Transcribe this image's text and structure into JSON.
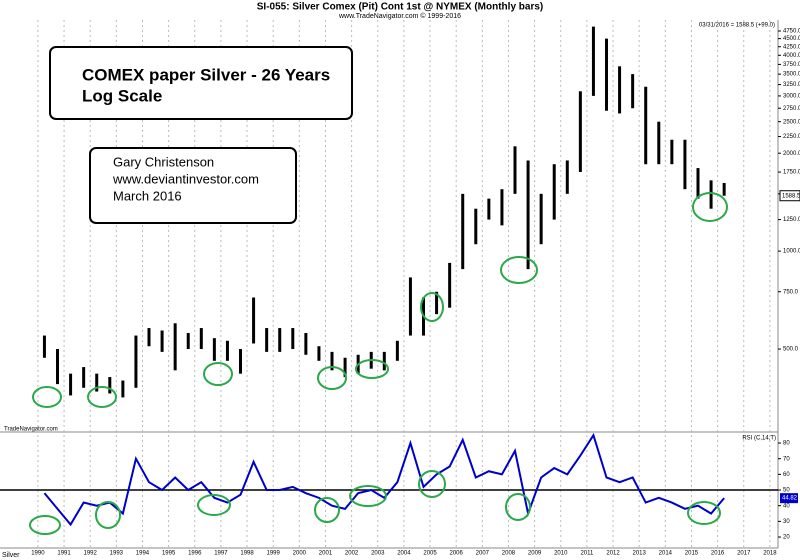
{
  "header": {
    "title": "SI-055:  Silver Comex (Pit) Cont 1st @ NYMEX  (Monthly bars)",
    "subtitle": "www.TradeNavigator.com © 1999-2016",
    "quote": "03/31/2016 = 1588.5 (+99.0)",
    "watermark": "TradeNavigator.com",
    "symbol": "Silver"
  },
  "boxes": {
    "main": [
      "COMEX paper Silver - 26 Years",
      "Log Scale"
    ],
    "author": [
      "Gary Christenson",
      "www.deviantinvestor.com",
      "March 2016"
    ]
  },
  "chart_data": [
    {
      "type": "hilo",
      "color": "#000000",
      "log": true,
      "last_label": "1588.5",
      "x": [
        1990,
        1990.5,
        1991,
        1991.5,
        1992,
        1992.5,
        1993,
        1993.5,
        1994,
        1994.5,
        1995,
        1995.5,
        1996,
        1996.5,
        1997,
        1997.5,
        1998,
        1998.5,
        1999,
        1999.5,
        2000,
        2000.5,
        2001,
        2001.5,
        2002,
        2002.5,
        2003,
        2003.5,
        2004,
        2004.5,
        2005,
        2005.5,
        2006,
        2006.5,
        2007,
        2007.5,
        2008,
        2008.5,
        2009,
        2009.5,
        2010,
        2010.5,
        2011,
        2011.5,
        2012,
        2012.5,
        2013,
        2013.5,
        2014,
        2014.5,
        2015,
        2015.5,
        2016
      ],
      "high": [
        550,
        500,
        420,
        440,
        420,
        410,
        400,
        550,
        580,
        570,
        600,
        560,
        580,
        540,
        530,
        500,
        720,
        580,
        580,
        580,
        560,
        510,
        490,
        470,
        480,
        490,
        490,
        530,
        830,
        720,
        750,
        920,
        1500,
        1350,
        1450,
        1550,
        2100,
        1900,
        1500,
        1850,
        1900,
        3100,
        4900,
        4500,
        3700,
        3500,
        3200,
        2500,
        2200,
        2200,
        1800,
        1650,
        1620
      ],
      "low": [
        470,
        390,
        360,
        380,
        370,
        365,
        355,
        380,
        510,
        490,
        430,
        500,
        500,
        460,
        460,
        420,
        520,
        490,
        490,
        500,
        480,
        460,
        430,
        410,
        420,
        435,
        430,
        460,
        550,
        550,
        640,
        670,
        880,
        1050,
        1250,
        1200,
        1500,
        880,
        1050,
        1250,
        1500,
        1750,
        3000,
        2700,
        2650,
        2750,
        1850,
        1850,
        1850,
        1550,
        1450,
        1350,
        1480
      ],
      "xlim": [
        1988.55,
        2018.31
      ],
      "xticks": [
        1990,
        1991,
        1992,
        1993,
        1994,
        1995,
        1996,
        1997,
        1998,
        1999,
        2000,
        2001,
        2002,
        2003,
        2004,
        2005,
        2006,
        2007,
        2008,
        2009,
        2010,
        2011,
        2012,
        2013,
        2014,
        2015,
        2016,
        2017,
        2018
      ],
      "ylim": [
        292,
        5135
      ],
      "yticks": [
        {
          "value": 500,
          "label": "500.0"
        },
        {
          "value": 750,
          "label": "750.0"
        },
        {
          "value": 1000,
          "label": "1000.0"
        },
        {
          "value": 1250,
          "label": "1250.0"
        },
        {
          "value": 1500,
          "label": "1500.0"
        },
        {
          "value": 1750,
          "label": "1750.0"
        },
        {
          "value": 2000,
          "label": "2000.0"
        },
        {
          "value": 2250,
          "label": "2250.0"
        },
        {
          "value": 2500,
          "label": "2500.0"
        },
        {
          "value": 2750,
          "label": "2750.0"
        },
        {
          "value": 3000,
          "label": "3000.0"
        },
        {
          "value": 3250,
          "label": "3250.0"
        },
        {
          "value": 3500,
          "label": "3500.0"
        },
        {
          "value": 3750,
          "label": "3750.0"
        },
        {
          "value": 4000,
          "label": "4000.0"
        },
        {
          "value": 4250,
          "label": "4250.0"
        },
        {
          "value": 4500,
          "label": "4500.0"
        },
        {
          "value": 4750,
          "label": "4750.0"
        }
      ]
    },
    {
      "type": "line",
      "title": "RSI (C,14,T)",
      "color": "#0000cc",
      "last_label": "44.82",
      "ref_line": 50,
      "x": [
        1990,
        1990.5,
        1991,
        1991.5,
        1992,
        1992.5,
        1993,
        1993.5,
        1994,
        1994.5,
        1995,
        1995.5,
        1996,
        1996.5,
        1997,
        1997.5,
        1998,
        1998.5,
        1999,
        1999.5,
        2000,
        2000.5,
        2001,
        2001.5,
        2002,
        2002.5,
        2003,
        2003.5,
        2004,
        2004.5,
        2005,
        2005.5,
        2006,
        2006.5,
        2007,
        2007.5,
        2008,
        2008.5,
        2009,
        2009.5,
        2010,
        2010.5,
        2011,
        2011.5,
        2012,
        2012.5,
        2013,
        2013.5,
        2014,
        2014.5,
        2015,
        2015.5,
        2016
      ],
      "values": [
        48,
        38,
        28,
        42,
        40,
        42,
        35,
        70,
        55,
        50,
        58,
        50,
        55,
        45,
        42,
        47,
        68,
        50,
        50,
        52,
        48,
        45,
        40,
        38,
        48,
        50,
        45,
        55,
        80,
        52,
        60,
        65,
        82,
        58,
        62,
        60,
        75,
        35,
        58,
        64,
        60,
        72,
        85,
        58,
        55,
        58,
        42,
        45,
        42,
        38,
        40,
        35,
        44.82
      ],
      "xlim": [
        1988.55,
        2018.31
      ],
      "ylim": [
        13,
        86.4
      ],
      "yticks": [
        20,
        30,
        40,
        50,
        60,
        70,
        80
      ]
    }
  ]
}
